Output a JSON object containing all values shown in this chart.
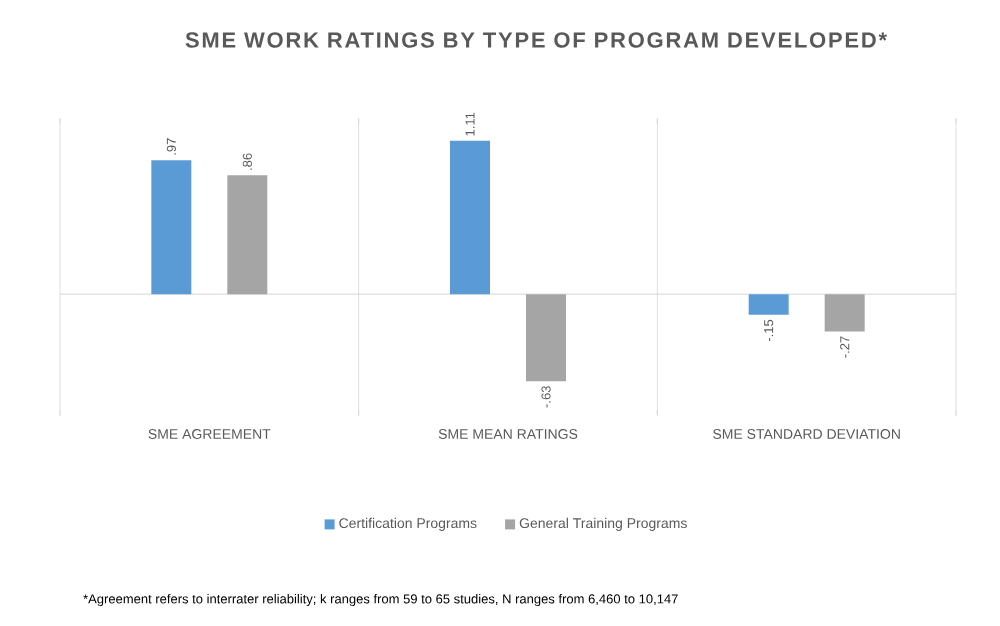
{
  "chart_data": {
    "type": "bar",
    "title": "SME WORK RATINGS BY TYPE OF PROGRAM DEVELOPED*",
    "categories": [
      "SME AGREEMENT",
      "SME MEAN RATINGS",
      "SME STANDARD DEVIATION"
    ],
    "series": [
      {
        "name": "Certification Programs",
        "color": "#5b9bd5",
        "values": [
          0.97,
          1.11,
          -0.15
        ],
        "value_labels": [
          ".97",
          "1.11",
          "-.15"
        ]
      },
      {
        "name": "General Training Programs",
        "color": "#a5a5a5",
        "values": [
          0.86,
          -0.63,
          -0.27
        ],
        "value_labels": [
          ".86",
          "-.63",
          "-.27"
        ]
      }
    ],
    "grid": "x",
    "legend": "bottom",
    "annotations": [
      "*Agreement refers to interrater reliability; k ranges from 59 to 65 studies, N ranges from 6,460 to 10,147"
    ]
  }
}
